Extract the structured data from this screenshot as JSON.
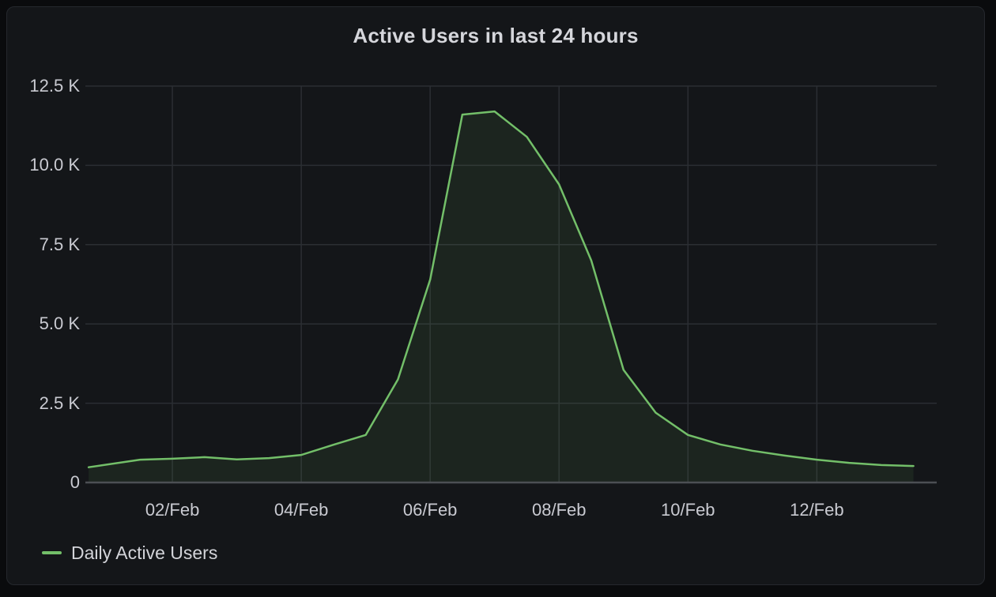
{
  "panel": {
    "title": "Active Users in last 24 hours"
  },
  "legend": {
    "items": [
      {
        "label": "Daily Active Users",
        "color": "#73bf69"
      }
    ]
  },
  "colors": {
    "page_background": "#0a0b0d",
    "panel_background": "#141619",
    "panel_border": "#25282d",
    "gridline": "#2b2e33",
    "axis_baseline": "#4c4f54",
    "tick_text": "#c9cad1",
    "title_text": "#d5d6db",
    "legend_text": "#d3d4d9",
    "series_green": "#73bf69"
  },
  "chart_data": {
    "type": "area",
    "title": "Active Users in last 24 hours",
    "xlabel": "",
    "ylabel": "",
    "x_unit": "days since 01/Feb 00:00 (fractional = 12h steps)",
    "xlim": [
      -0.35,
      12.86
    ],
    "ylim": [
      0,
      12500
    ],
    "grid": true,
    "legend_position": "bottom-left",
    "x_ticks": [
      {
        "t": 1,
        "label": "02/Feb"
      },
      {
        "t": 3,
        "label": "04/Feb"
      },
      {
        "t": 5,
        "label": "06/Feb"
      },
      {
        "t": 7,
        "label": "08/Feb"
      },
      {
        "t": 9,
        "label": "10/Feb"
      },
      {
        "t": 11,
        "label": "12/Feb"
      }
    ],
    "y_ticks": [
      {
        "v": 0,
        "label": "0"
      },
      {
        "v": 2500,
        "label": "2.5 K"
      },
      {
        "v": 5000,
        "label": "5.0 K"
      },
      {
        "v": 7500,
        "label": "7.5 K"
      },
      {
        "v": 10000,
        "label": "10.0 K"
      },
      {
        "v": 12500,
        "label": "12.5 K"
      }
    ],
    "series": [
      {
        "name": "Daily Active Users",
        "color": "#73bf69",
        "fill_opacity": 0.09,
        "line_width": 2.5,
        "points": [
          [
            -0.3,
            480
          ],
          [
            0.5,
            720
          ],
          [
            1,
            750
          ],
          [
            1.5,
            800
          ],
          [
            2,
            730
          ],
          [
            2.5,
            770
          ],
          [
            3,
            870
          ],
          [
            3.5,
            1190
          ],
          [
            4,
            1500
          ],
          [
            4.5,
            3250
          ],
          [
            5,
            6400
          ],
          [
            5.5,
            11600
          ],
          [
            6,
            11700
          ],
          [
            6.5,
            10900
          ],
          [
            7,
            9400
          ],
          [
            7.5,
            7000
          ],
          [
            8,
            3550
          ],
          [
            8.5,
            2200
          ],
          [
            9,
            1500
          ],
          [
            9.5,
            1200
          ],
          [
            10,
            1000
          ],
          [
            10.5,
            850
          ],
          [
            11,
            720
          ],
          [
            11.5,
            620
          ],
          [
            12,
            550
          ],
          [
            12.5,
            520
          ]
        ]
      }
    ]
  }
}
